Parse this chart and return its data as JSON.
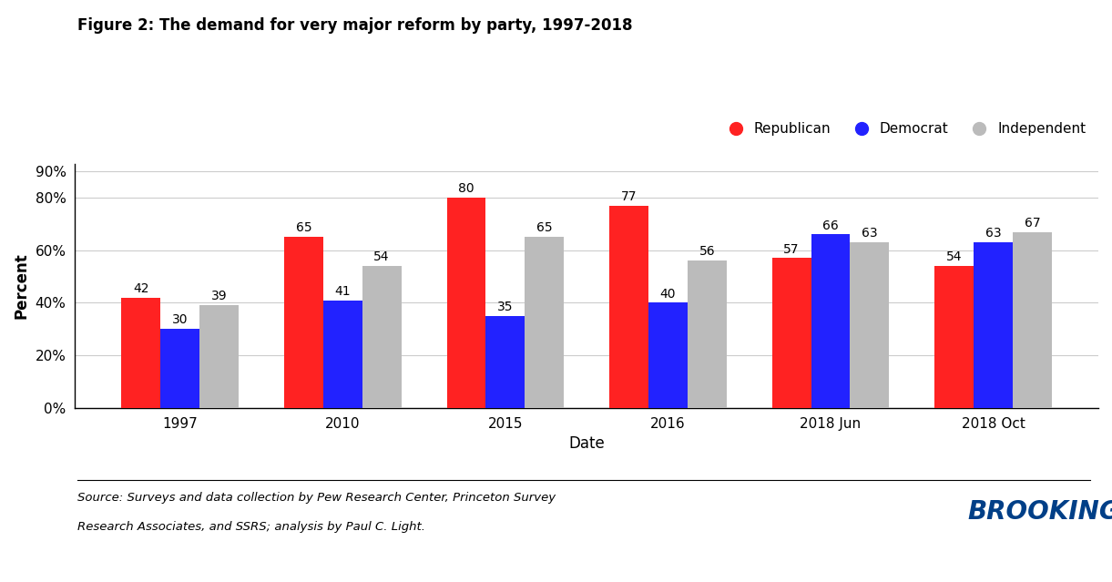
{
  "title": "Figure 2: The demand for very major reform by party, 1997-2018",
  "xlabel": "Date",
  "ylabel": "Percent",
  "categories": [
    "1997",
    "2010",
    "2015",
    "2016",
    "2018 Jun",
    "2018 Oct"
  ],
  "republican": [
    42,
    65,
    80,
    77,
    57,
    54
  ],
  "democrat": [
    30,
    41,
    35,
    40,
    66,
    63
  ],
  "independent": [
    39,
    54,
    65,
    56,
    63,
    67
  ],
  "republican_color": "#FF2222",
  "democrat_color": "#2222FF",
  "independent_color": "#BBBBBB",
  "bar_width": 0.24,
  "ylim": [
    0,
    93
  ],
  "ytick_vals": [
    0,
    20,
    40,
    60,
    80,
    90
  ],
  "source_text_line1": "Source: Surveys and data collection by Pew Research Center, Princeton Survey",
  "source_text_line2": "Research Associates, and SSRS; analysis by Paul C. Light.",
  "brookings_color": "#003F87",
  "grid_color": "#CCCCCC"
}
